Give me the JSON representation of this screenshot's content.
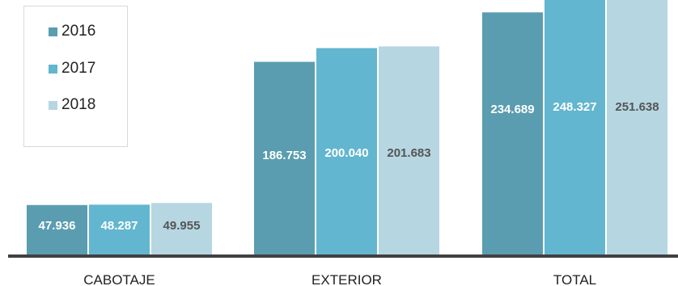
{
  "chart_data": {
    "type": "bar",
    "categories": [
      "CABOTAJE",
      "EXTERIOR",
      "TOTAL"
    ],
    "series": [
      {
        "name": "2016",
        "color": "#5a9db0",
        "label_color": "#ffffff",
        "values": [
          47936,
          186753,
          234689
        ],
        "labels": [
          "47.936",
          "186.753",
          "234.689"
        ]
      },
      {
        "name": "2017",
        "color": "#62b6cf",
        "label_color": "#ffffff",
        "values": [
          48287,
          200040,
          248327
        ],
        "labels": [
          "48.287",
          "200.040",
          "248.327"
        ]
      },
      {
        "name": "2018",
        "color": "#b6d6e2",
        "label_color": "#555555",
        "values": [
          49955,
          201683,
          251638
        ],
        "labels": [
          "49.955",
          "201.683",
          "251.638"
        ]
      }
    ],
    "ylim": [
      0,
      250000
    ],
    "grid": false,
    "legend": "top-left",
    "axis_color": "#404040"
  }
}
